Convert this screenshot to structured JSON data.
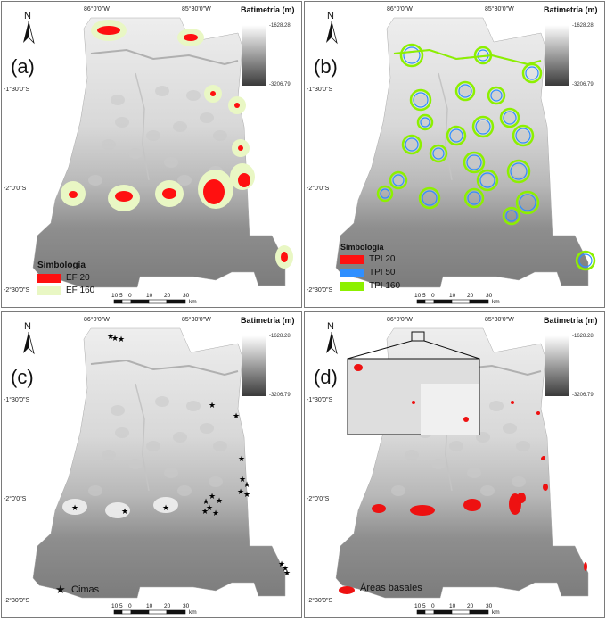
{
  "colors": {
    "ef20": "#ff1010",
    "ef160": "#e9f7c4",
    "tpi20": "#ff1010",
    "tpi50": "#2f8fff",
    "tpi160": "#8cf000",
    "basal": "#ee1111"
  },
  "common": {
    "north": "N",
    "lon_a": "86°0'0\"W",
    "lon_b": "85°30'0\"W",
    "lat_1": "-1°30'0\"S",
    "lat_2": "-2°0'0\"S",
    "lat_3": "-2°30'0\"S",
    "batim_title": "Batimetría (m)",
    "batim_max": "-1628.28",
    "batim_min": "-3206.79",
    "scale_ticks": [
      "10",
      "5",
      "0",
      "10",
      "20",
      "30"
    ],
    "scale_unit": "km"
  },
  "panels": [
    {
      "letter": "(a)",
      "legend_title": "Simbología",
      "legend": [
        "EF 20",
        "EF 160"
      ]
    },
    {
      "letter": "(b)",
      "legend_title": "Simbología",
      "legend": [
        "TPI 20",
        "TPI 50",
        "TPI 160"
      ]
    },
    {
      "letter": "(c)",
      "legend": [
        "Cimas"
      ]
    },
    {
      "letter": "(d)",
      "legend": [
        "Áreas basales"
      ]
    }
  ]
}
